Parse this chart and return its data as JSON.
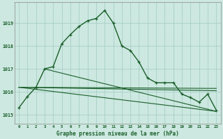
{
  "title": "Graphe pression niveau de la mer (hPa)",
  "bg_color": "#cce8e0",
  "grid_color": "#a8cfc8",
  "line_color": "#1a5e2a",
  "xlim": [
    -0.5,
    23.5
  ],
  "ylim": [
    1014.6,
    1019.9
  ],
  "yticks": [
    1015,
    1016,
    1017,
    1018,
    1019
  ],
  "xticks": [
    0,
    1,
    2,
    3,
    4,
    5,
    6,
    7,
    8,
    9,
    10,
    11,
    12,
    13,
    14,
    15,
    16,
    17,
    18,
    19,
    20,
    21,
    22,
    23
  ],
  "series": [
    {
      "x": [
        0,
        1,
        2,
        3,
        4,
        5,
        6,
        7,
        8,
        9,
        10,
        11,
        12,
        13,
        14,
        15,
        16,
        17,
        18,
        19,
        20,
        21,
        22,
        23
      ],
      "y": [
        1015.3,
        1015.8,
        1016.2,
        1017.0,
        1017.1,
        1018.1,
        1018.5,
        1018.85,
        1019.1,
        1019.2,
        1019.55,
        1019.0,
        1018.0,
        1017.8,
        1017.3,
        1016.6,
        1016.4,
        1016.4,
        1016.4,
        1015.9,
        1015.75,
        1015.55,
        1015.9,
        1015.2
      ],
      "marker": true,
      "linewidth": 1.0
    },
    {
      "x": [
        0,
        23
      ],
      "y": [
        1016.2,
        1016.15
      ],
      "marker": false,
      "linewidth": 0.8
    },
    {
      "x": [
        0,
        23
      ],
      "y": [
        1016.2,
        1015.15
      ],
      "marker": false,
      "linewidth": 0.8
    },
    {
      "x": [
        3,
        23
      ],
      "y": [
        1017.0,
        1015.15
      ],
      "marker": false,
      "linewidth": 0.8
    },
    {
      "x": [
        0,
        23
      ],
      "y": [
        1016.2,
        1016.05
      ],
      "marker": false,
      "linewidth": 0.8
    }
  ]
}
